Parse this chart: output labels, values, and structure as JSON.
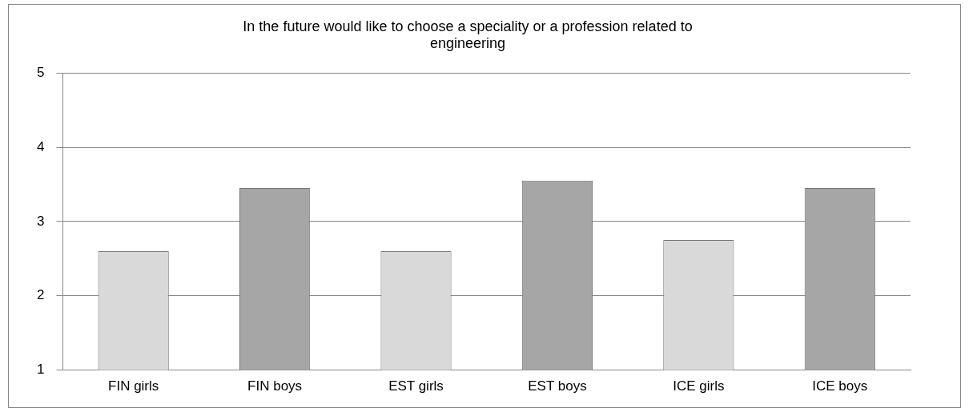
{
  "chart_data": {
    "type": "bar",
    "title": "In the future would like to choose a speciality or a profession related to engineering",
    "categories": [
      "FIN girls",
      "FIN boys",
      "EST girls",
      "EST boys",
      "ICE girls",
      "ICE boys"
    ],
    "values": [
      2.6,
      3.45,
      2.6,
      3.55,
      2.75,
      3.45
    ],
    "colors": [
      "#d9d9d9",
      "#a6a6a6",
      "#d9d9d9",
      "#a6a6a6",
      "#d9d9d9",
      "#a6a6a6"
    ],
    "ylim": [
      1,
      5
    ],
    "yticks": [
      1,
      2,
      3,
      4,
      5
    ],
    "grid": "y",
    "legend": false
  }
}
